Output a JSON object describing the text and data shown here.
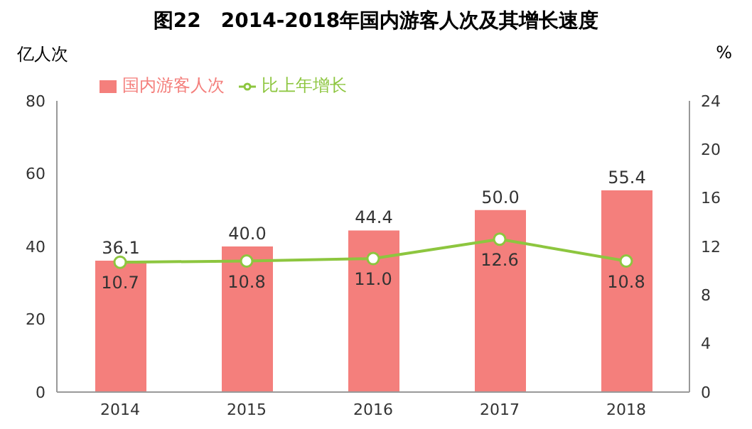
{
  "chart_data": {
    "type": "bar",
    "title": "图22　2014-2018年国内游客人次及其增长速度",
    "ylabel": "亿人次",
    "y2label": "%",
    "categories": [
      "2014",
      "2015",
      "2016",
      "2017",
      "2018"
    ],
    "series": [
      {
        "name": "国内游客人次",
        "color": "#f47f7c",
        "values": [
          36.1,
          40.0,
          44.4,
          50.0,
          55.4
        ],
        "value_labels": [
          "36.1",
          "40.0",
          "44.4",
          "50.0",
          "55.4"
        ]
      },
      {
        "name": "比上年增长",
        "type": "line",
        "axis": "y2",
        "color": "#8dc63f",
        "values": [
          10.7,
          10.8,
          11.0,
          12.6,
          10.8
        ],
        "value_labels": [
          "10.7",
          "10.8",
          "11.0",
          "12.6",
          "10.8"
        ]
      }
    ],
    "ylim": [
      0,
      80
    ],
    "yticks": [
      0,
      20,
      40,
      60,
      80
    ],
    "y2lim": [
      0,
      24
    ],
    "y2ticks": [
      0,
      4,
      8,
      12,
      16,
      20,
      24
    ],
    "legend": "top",
    "marker": "circle",
    "grid": false
  }
}
